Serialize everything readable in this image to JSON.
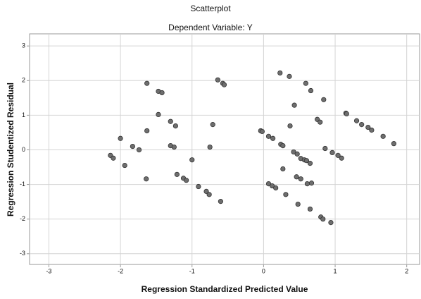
{
  "chart_data": {
    "type": "scatter",
    "title": "Scatterplot",
    "subtitle": "Dependent Variable: Y",
    "x_label": "Regression Standardized Predicted Value",
    "y_label": "Regression Studentized Residual",
    "xlim": [
      -3.27,
      2.18
    ],
    "ylim": [
      -3.31,
      3.35
    ],
    "xticks": [
      -3,
      -2,
      -1,
      0,
      1,
      2
    ],
    "yticks": [
      -3,
      -2,
      -1,
      0,
      1,
      2,
      3
    ],
    "grid": true,
    "color": "#6e6e6e",
    "x": [
      -2.14,
      -2.1,
      -2.0,
      -1.94,
      -1.83,
      -1.74,
      -1.63,
      -1.63,
      -1.64,
      -1.47,
      -1.42,
      -1.47,
      -1.3,
      -1.23,
      -1.3,
      -1.25,
      -1.21,
      -1.12,
      -1.08,
      -1.0,
      -0.91,
      -0.8,
      -0.76,
      -0.75,
      -0.71,
      -0.64,
      -0.57,
      -0.55,
      -0.6,
      -0.04,
      -0.02,
      0.07,
      0.13,
      0.23,
      0.36,
      0.24,
      0.27,
      0.07,
      0.12,
      0.17,
      0.27,
      0.31,
      0.37,
      0.43,
      0.42,
      0.47,
      0.46,
      0.48,
      0.52,
      0.57,
      0.52,
      0.59,
      0.66,
      0.6,
      0.65,
      0.67,
      0.61,
      0.65,
      0.75,
      0.79,
      0.84,
      0.86,
      0.96,
      1.04,
      1.09,
      0.8,
      0.83,
      0.94,
      1.15,
      1.16,
      1.3,
      1.37,
      1.46,
      1.51,
      1.67,
      1.82
    ],
    "y": [
      -0.16,
      -0.24,
      0.33,
      -0.45,
      0.1,
      0.0,
      1.92,
      0.55,
      -0.84,
      1.69,
      1.65,
      1.02,
      0.82,
      0.69,
      0.12,
      0.08,
      -0.71,
      -0.82,
      -0.88,
      -0.29,
      -1.06,
      -1.2,
      -1.29,
      0.08,
      0.73,
      2.02,
      1.92,
      1.88,
      -1.49,
      0.55,
      0.53,
      0.39,
      0.33,
      2.22,
      2.12,
      0.16,
      0.12,
      -0.98,
      -1.04,
      -1.1,
      -0.55,
      -1.29,
      0.69,
      1.29,
      -0.06,
      -0.12,
      -0.78,
      -1.57,
      -0.25,
      -0.29,
      -0.84,
      1.92,
      1.71,
      -0.31,
      -0.39,
      -0.96,
      -0.98,
      -1.71,
      0.88,
      0.8,
      1.45,
      0.04,
      -0.08,
      -0.16,
      -0.24,
      -1.94,
      -2.0,
      -2.1,
      1.06,
      1.04,
      0.84,
      0.73,
      0.65,
      0.57,
      0.39,
      0.18
    ]
  }
}
